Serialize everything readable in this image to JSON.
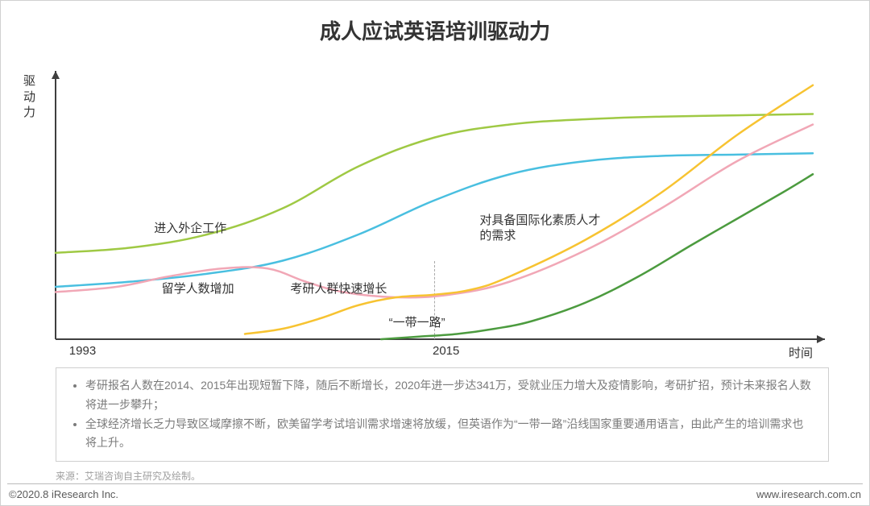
{
  "title": {
    "text": "成人应试英语培训驱动力",
    "fontsize": 26,
    "color": "#333333"
  },
  "chart": {
    "type": "line",
    "background": "#ffffff",
    "axis_color": "#3f3f3f",
    "axis_width": 2,
    "arrow_size": 10,
    "y_axis_label": "驱动力",
    "y_axis_label_fontsize": 15,
    "x_axis_label": "时间",
    "x_axis_label_fontsize": 15,
    "x_ticks": [
      {
        "label": "1993",
        "x": 0.02
      },
      {
        "label": "2015",
        "x": 0.5
      }
    ],
    "marker_2015": {
      "x": 0.5,
      "y_top": 0.3
    },
    "series": [
      {
        "name": "foreign-company",
        "label": "进入外企工作",
        "label_x": 0.13,
        "label_y": 0.45,
        "color": "#9fc944",
        "width": 2.5,
        "points": [
          [
            0.0,
            0.33
          ],
          [
            0.1,
            0.35
          ],
          [
            0.2,
            0.4
          ],
          [
            0.3,
            0.5
          ],
          [
            0.4,
            0.66
          ],
          [
            0.5,
            0.77
          ],
          [
            0.6,
            0.82
          ],
          [
            0.7,
            0.84
          ],
          [
            0.8,
            0.85
          ],
          [
            0.9,
            0.855
          ],
          [
            1.0,
            0.86
          ]
        ]
      },
      {
        "name": "intl-talent",
        "label": "对具备国际化素质人才\\n的需求",
        "label_x": 0.56,
        "label_y": 0.48,
        "color": "#49bfe0",
        "width": 2.5,
        "points": [
          [
            0.0,
            0.2
          ],
          [
            0.1,
            0.22
          ],
          [
            0.2,
            0.25
          ],
          [
            0.3,
            0.3
          ],
          [
            0.4,
            0.4
          ],
          [
            0.5,
            0.53
          ],
          [
            0.6,
            0.63
          ],
          [
            0.7,
            0.68
          ],
          [
            0.8,
            0.7
          ],
          [
            0.9,
            0.705
          ],
          [
            1.0,
            0.71
          ]
        ]
      },
      {
        "name": "study-abroad",
        "label": "留学人数增加",
        "label_x": 0.14,
        "label_y": 0.22,
        "color": "#f1a7b6",
        "width": 2.5,
        "points": [
          [
            0.0,
            0.18
          ],
          [
            0.08,
            0.2
          ],
          [
            0.15,
            0.24
          ],
          [
            0.22,
            0.27
          ],
          [
            0.28,
            0.27
          ],
          [
            0.33,
            0.22
          ],
          [
            0.38,
            0.18
          ],
          [
            0.45,
            0.16
          ],
          [
            0.52,
            0.17
          ],
          [
            0.6,
            0.22
          ],
          [
            0.7,
            0.34
          ],
          [
            0.8,
            0.5
          ],
          [
            0.9,
            0.68
          ],
          [
            1.0,
            0.82
          ]
        ]
      },
      {
        "name": "kaoyan",
        "label": "考研人群快速增长",
        "label_x": 0.31,
        "label_y": 0.22,
        "color": "#f7c331",
        "width": 2.5,
        "points": [
          [
            0.25,
            0.02
          ],
          [
            0.3,
            0.04
          ],
          [
            0.35,
            0.08
          ],
          [
            0.4,
            0.13
          ],
          [
            0.45,
            0.16
          ],
          [
            0.5,
            0.17
          ],
          [
            0.55,
            0.19
          ],
          [
            0.6,
            0.24
          ],
          [
            0.7,
            0.38
          ],
          [
            0.8,
            0.56
          ],
          [
            0.9,
            0.78
          ],
          [
            1.0,
            0.97
          ]
        ]
      },
      {
        "name": "belt-road",
        "label": "“一带一路”",
        "label_x": 0.44,
        "label_y": 0.09,
        "color": "#4c9b3f",
        "width": 2.5,
        "points": [
          [
            0.43,
            0.0
          ],
          [
            0.48,
            0.01
          ],
          [
            0.53,
            0.02
          ],
          [
            0.58,
            0.04
          ],
          [
            0.63,
            0.07
          ],
          [
            0.7,
            0.14
          ],
          [
            0.77,
            0.24
          ],
          [
            0.84,
            0.36
          ],
          [
            0.9,
            0.46
          ],
          [
            0.96,
            0.56
          ],
          [
            1.0,
            0.63
          ]
        ]
      }
    ]
  },
  "notes": {
    "bullet_color": "#7b7b7b",
    "fontsize": 14,
    "items_raw": "考研报名人数在2014、2015年出现短暂下降，随后不断增长，2020年进一步达341万，受就业压力增大及疫情影响，考研扩招，预计未来报名人数将进一步攀升；\n全球经济增长乏力导致区域摩擦不断，欧美留学考试培训需求增速将放缓，但英语作为“一带一路”沿线国家重要通用语言，由此产生的培训需求也将上升。",
    "items": [
      "考研报名人数在2014、2015年出现短暂下降，随后不断增长，2020年进一步达341万，受就业压力增大及疫情影响，考研扩招，预计未来报名人数将进一步攀升；",
      "全球经济增长乏力导致区域摩擦不断，欧美留学考试培训需求增速将放缓，但英语作为“一带一路”沿线国家重要通用语言，由此产生的培训需求也将上升。"
    ]
  },
  "source": {
    "text": "来源：艾瑞咨询自主研究及绘制。",
    "fontsize": 12
  },
  "footer": {
    "copyright": "©2020.8 iResearch Inc.",
    "site": "www.iresearch.com.cn",
    "fontsize": 13
  }
}
